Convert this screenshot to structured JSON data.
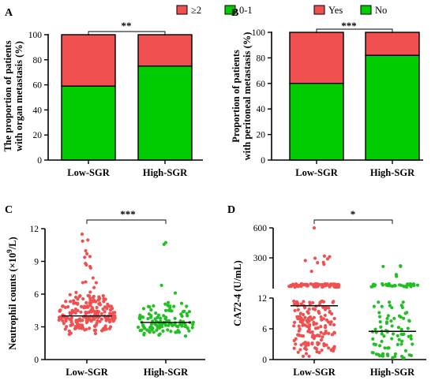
{
  "panels": {
    "A": {
      "label": "A"
    },
    "B": {
      "label": "B"
    },
    "C": {
      "label": "C"
    },
    "D": {
      "label": "D"
    }
  },
  "chart_data": [
    {
      "panel": "A",
      "type": "bar",
      "stacked": true,
      "categories": [
        "Low-SGR",
        "High-SGR"
      ],
      "series": [
        {
          "name": "0-1",
          "color": "#00cc00",
          "values": [
            59,
            75
          ]
        },
        {
          "name": "≥2",
          "color": "#f05050",
          "values": [
            41,
            25
          ]
        }
      ],
      "ylabel_line1": "The proportion of patients",
      "ylabel_line2": "with organ metastasis (%)",
      "ylim": [
        0,
        100
      ],
      "yticks": [
        0,
        20,
        40,
        60,
        80,
        100
      ],
      "legend": [
        "≥2",
        "0-1"
      ],
      "legend_position": "top",
      "significance": "**"
    },
    {
      "panel": "B",
      "type": "bar",
      "stacked": true,
      "categories": [
        "Low-SGR",
        "High-SGR"
      ],
      "series": [
        {
          "name": "No",
          "color": "#00cc00",
          "values": [
            60,
            82
          ]
        },
        {
          "name": "Yes",
          "color": "#f05050",
          "values": [
            40,
            18
          ]
        }
      ],
      "ylabel_line1": "Proportion of patients",
      "ylabel_line2": "with peritoneal metastasis (%)",
      "ylim": [
        0,
        100
      ],
      "yticks": [
        0,
        20,
        40,
        60,
        80,
        100
      ],
      "legend": [
        "Yes",
        "No"
      ],
      "legend_position": "top",
      "significance": "***"
    },
    {
      "panel": "C",
      "type": "scatter",
      "categories": [
        "Low-SGR",
        "High-SGR"
      ],
      "ylabel_pre": "Neutrophil counts (×10",
      "ylabel_sup": "9",
      "ylabel_post": "/L)",
      "ylim": [
        0,
        12
      ],
      "yticks": [
        0,
        3,
        6,
        9,
        12
      ],
      "colors": [
        "#f05050",
        "#22c022"
      ],
      "medians": [
        4.0,
        3.4
      ],
      "n_points": [
        230,
        120
      ],
      "significance": "***"
    },
    {
      "panel": "D",
      "type": "scatter",
      "categories": [
        "Low-SGR",
        "High-SGR"
      ],
      "ylabel": "CA72-4 (U/mL)",
      "ylim": [
        0,
        600
      ],
      "yticks_lower": [
        0,
        6,
        12
      ],
      "yticks_upper": [
        300,
        600
      ],
      "axis_break": true,
      "colors": [
        "#f05050",
        "#22c022"
      ],
      "medians": [
        10.5,
        5.5
      ],
      "n_points": [
        230,
        120
      ],
      "significance": "*"
    }
  ]
}
